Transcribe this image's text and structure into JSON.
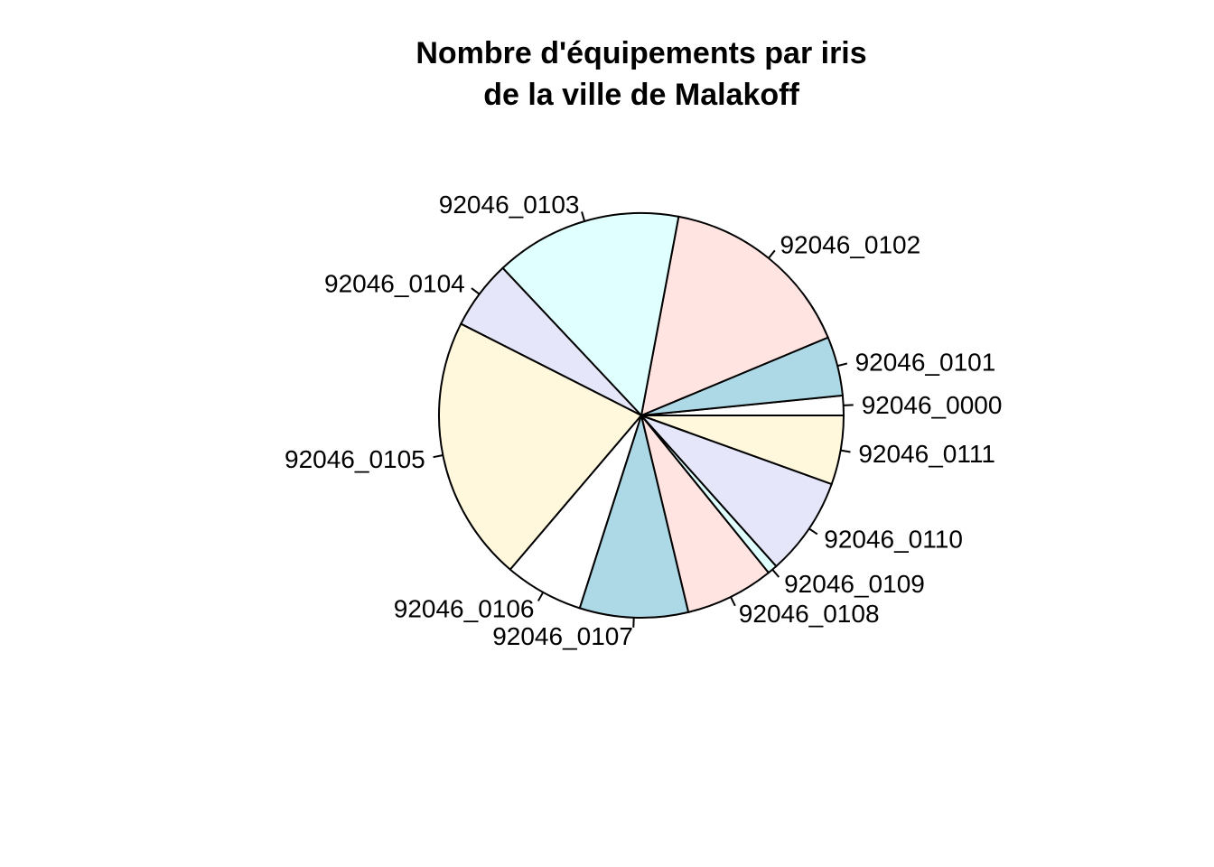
{
  "chart_data": {
    "type": "pie",
    "title": [
      "Nombre d'équipements par iris",
      "de la ville de Malakoff"
    ],
    "start": "3 o'clock",
    "direction": "counterclockwise",
    "slices": [
      {
        "label": "92046_0000",
        "value": 2,
        "color": "#FFFFFF"
      },
      {
        "label": "92046_0101",
        "value": 6,
        "color": "#ADD8E6"
      },
      {
        "label": "92046_0102",
        "value": 20,
        "color": "#FFE4E1"
      },
      {
        "label": "92046_0103",
        "value": 19,
        "color": "#E0FFFF"
      },
      {
        "label": "92046_0104",
        "value": 7,
        "color": "#E6E6FA"
      },
      {
        "label": "92046_0105",
        "value": 27,
        "color": "#FFF8DC"
      },
      {
        "label": "92046_0106",
        "value": 8,
        "color": "#FFFFFF"
      },
      {
        "label": "92046_0107",
        "value": 11,
        "color": "#ADD8E6"
      },
      {
        "label": "92046_0108",
        "value": 9,
        "color": "#FFE4E1"
      },
      {
        "label": "92046_0109",
        "value": 1,
        "color": "#E0FFFF"
      },
      {
        "label": "92046_0110",
        "value": 10,
        "color": "#E6E6FA"
      },
      {
        "label": "92046_0111",
        "value": 7,
        "color": "#FFF8DC"
      }
    ]
  }
}
